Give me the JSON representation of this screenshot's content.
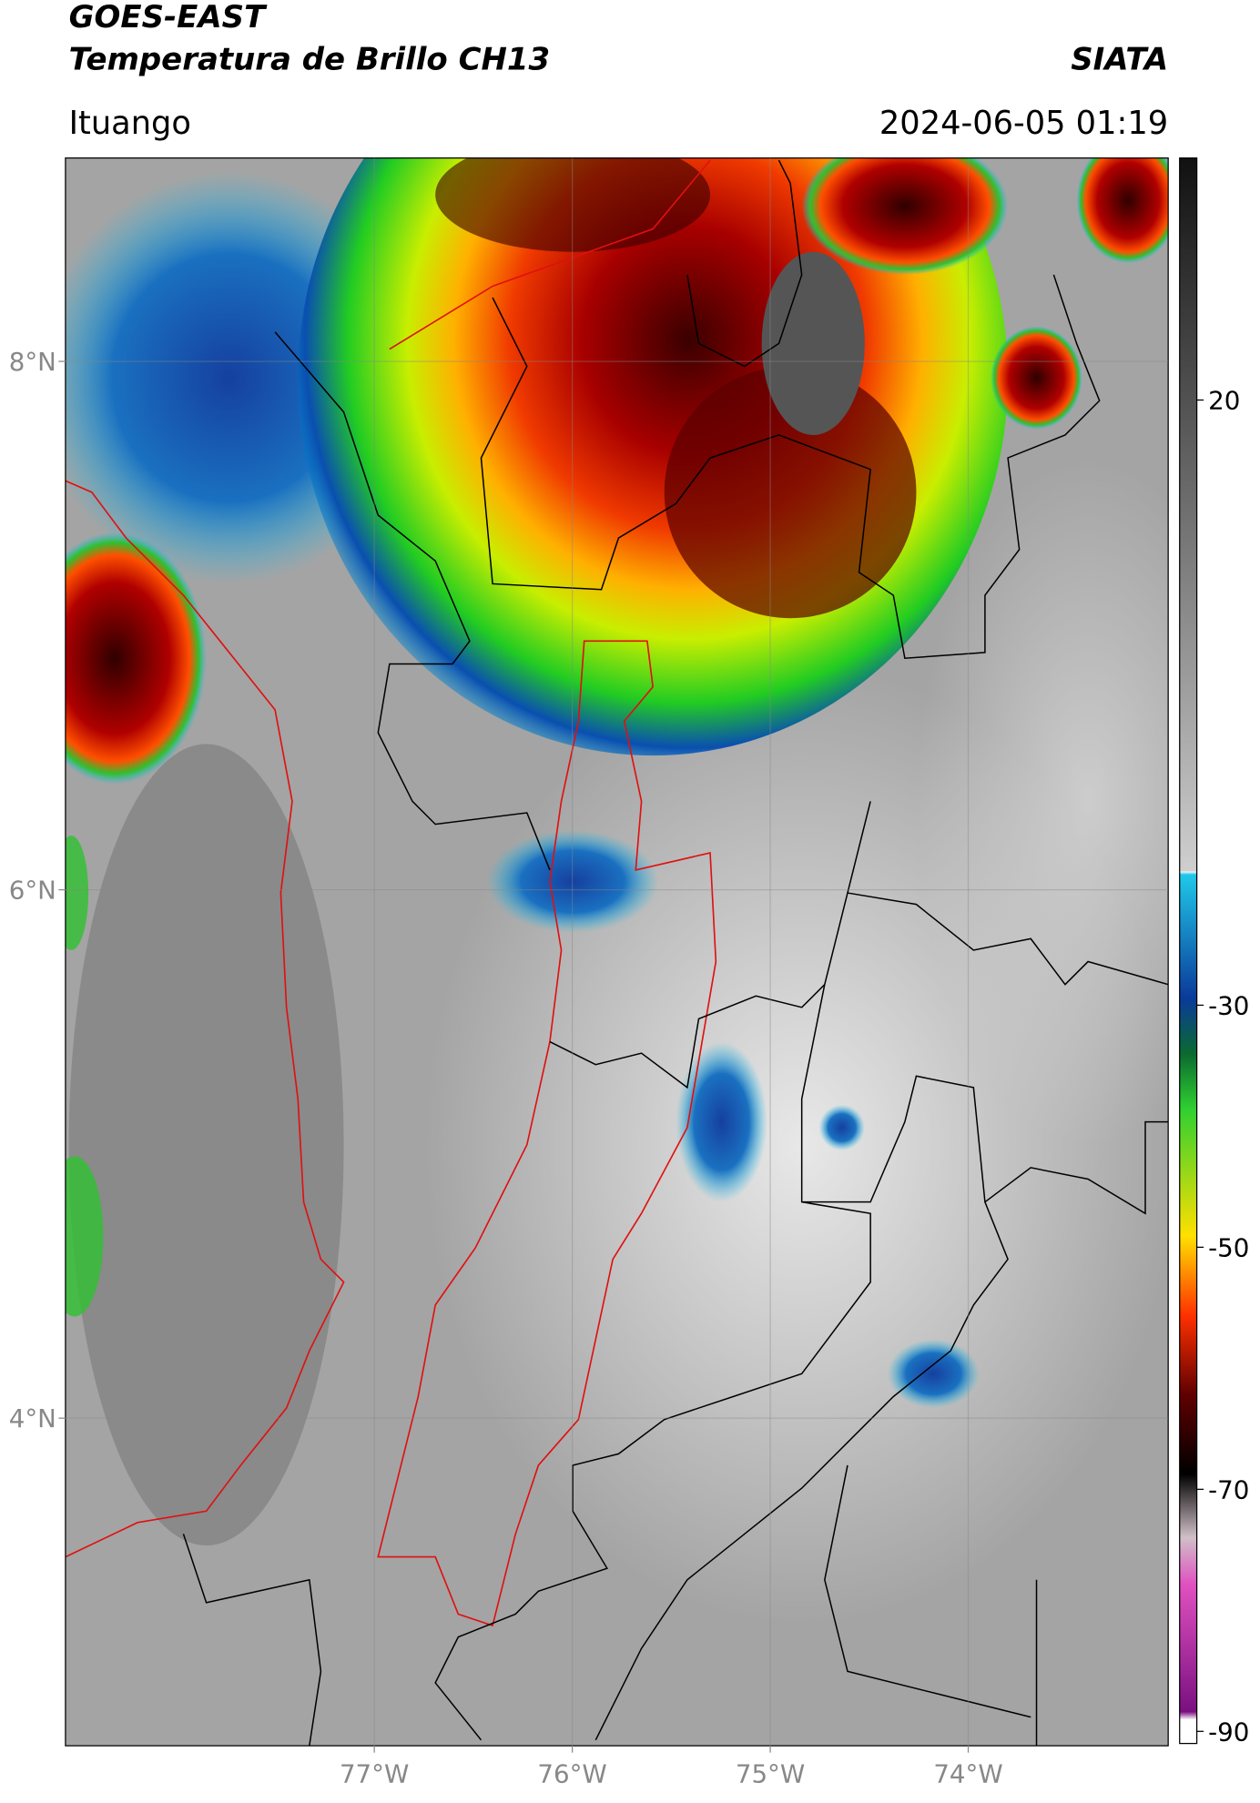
{
  "header": {
    "title": "GOES-EAST",
    "subtitle": "Temperatura de Brillo CH13",
    "source": "SIATA",
    "location": "Ituango",
    "datetime": "2024-06-05 01:19"
  },
  "map": {
    "xlim": [
      -78.56,
      -72.99
    ],
    "ylim": [
      2.76,
      8.77
    ],
    "xticks": [
      {
        "value": -77,
        "label": "77°W"
      },
      {
        "value": -76,
        "label": "76°W"
      },
      {
        "value": -75,
        "label": "75°W"
      },
      {
        "value": -74,
        "label": "74°W"
      }
    ],
    "yticks": [
      {
        "value": 8,
        "label": "8°N"
      },
      {
        "value": 6,
        "label": "6°N"
      },
      {
        "value": 4,
        "label": "4°N"
      }
    ],
    "grid": true
  },
  "colorbar": {
    "lim": [
      -91,
      40
    ],
    "ticks": [
      20,
      -30,
      -50,
      -70,
      -90
    ]
  }
}
